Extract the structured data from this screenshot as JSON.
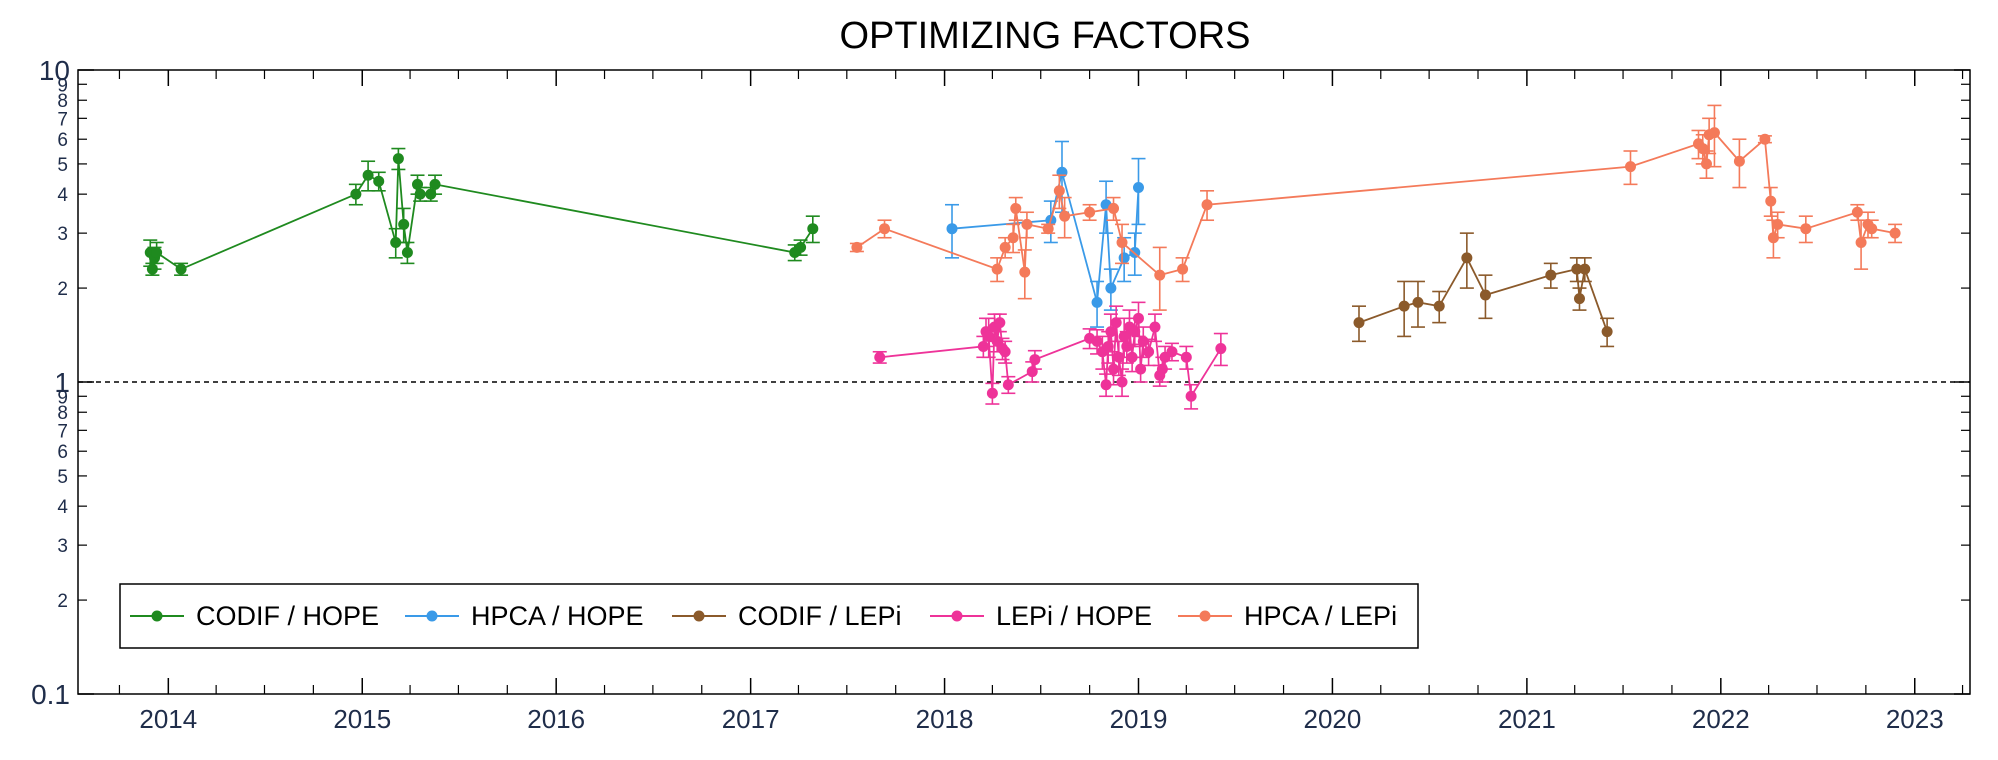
{
  "chart_data": {
    "type": "scatter",
    "title": "OPTIMIZING FACTORS",
    "xlabel": "",
    "ylabel": "",
    "x_axis": {
      "type": "date",
      "range": [
        "2013-07-15",
        "2023-04-15"
      ],
      "tick_labels": [
        "2014",
        "2015",
        "2016",
        "2017",
        "2018",
        "2019",
        "2020",
        "2021",
        "2022",
        "2023"
      ],
      "tick_positions": [
        "2014-01-01",
        "2015-01-01",
        "2016-01-01",
        "2017-01-01",
        "2018-01-01",
        "2019-01-01",
        "2020-01-01",
        "2021-01-01",
        "2022-01-01",
        "2023-01-01"
      ]
    },
    "y_axis": {
      "scale": "log",
      "range": [
        0.1,
        10
      ],
      "major_tick_labels": [
        "0.1",
        "1",
        "10"
      ],
      "minor_tick_labels": [
        "2",
        "3",
        "4",
        "5",
        "6",
        "7",
        "8",
        "9",
        "2",
        "3",
        "4",
        "5",
        "6",
        "7",
        "8",
        "9"
      ]
    },
    "reference_line": {
      "y": 1,
      "style": "dashed"
    },
    "grid": false,
    "legend": {
      "placement": "bottom-left",
      "horizontal": true
    },
    "series": [
      {
        "name": "CODIF / HOPE",
        "color": "#1f8a1f",
        "points": [
          {
            "x": "2013-11-28",
            "y": 2.6,
            "err": 0.25
          },
          {
            "x": "2013-12-02",
            "y": 2.3,
            "err": 0.1
          },
          {
            "x": "2013-12-06",
            "y": 2.5,
            "err": 0.2
          },
          {
            "x": "2013-12-10",
            "y": 2.6,
            "err": 0.2
          },
          {
            "x": "2014-01-25",
            "y": 2.3,
            "err": 0.1
          },
          {
            "x": "2014-12-20",
            "y": 4.0,
            "err": 0.3
          },
          {
            "x": "2015-01-12",
            "y": 4.6,
            "err": 0.5
          },
          {
            "x": "2015-02-01",
            "y": 4.4,
            "err": 0.3
          },
          {
            "x": "2015-03-05",
            "y": 2.8,
            "err": 0.3
          },
          {
            "x": "2015-03-10",
            "y": 5.2,
            "err": 0.4
          },
          {
            "x": "2015-03-20",
            "y": 3.2,
            "err": 0.4
          },
          {
            "x": "2015-03-27",
            "y": 2.6,
            "err": 0.2
          },
          {
            "x": "2015-04-15",
            "y": 4.3,
            "err": 0.3
          },
          {
            "x": "2015-04-20",
            "y": 4.0,
            "err": 0.2
          },
          {
            "x": "2015-05-10",
            "y": 4.0,
            "err": 0.2
          },
          {
            "x": "2015-05-18",
            "y": 4.3,
            "err": 0.3
          },
          {
            "x": "2017-03-25",
            "y": 2.6,
            "err": 0.15
          },
          {
            "x": "2017-04-05",
            "y": 2.7,
            "err": 0.15
          },
          {
            "x": "2017-04-28",
            "y": 3.1,
            "err": 0.3
          }
        ]
      },
      {
        "name": "HPCA / HOPE",
        "color": "#3a9ae8",
        "points": [
          {
            "x": "2018-01-15",
            "y": 3.1,
            "err": 0.6
          },
          {
            "x": "2018-07-20",
            "y": 3.3,
            "err": 0.5
          },
          {
            "x": "2018-08-10",
            "y": 4.7,
            "err": 1.2
          },
          {
            "x": "2018-10-15",
            "y": 1.8,
            "err": 0.3
          },
          {
            "x": "2018-11-01",
            "y": 3.7,
            "err": 0.7
          },
          {
            "x": "2018-11-10",
            "y": 2.0,
            "err": 0.3
          },
          {
            "x": "2018-12-05",
            "y": 2.5,
            "err": 0.4
          },
          {
            "x": "2018-12-25",
            "y": 2.6,
            "err": 0.4
          },
          {
            "x": "2019-01-01",
            "y": 4.2,
            "err": 1.0
          }
        ]
      },
      {
        "name": "CODIF / LEPi",
        "color": "#8b5a2b",
        "points": [
          {
            "x": "2020-02-20",
            "y": 1.55,
            "err": 0.2
          },
          {
            "x": "2020-05-15",
            "y": 1.75,
            "err": 0.35
          },
          {
            "x": "2020-06-10",
            "y": 1.8,
            "err": 0.3
          },
          {
            "x": "2020-07-20",
            "y": 1.75,
            "err": 0.2
          },
          {
            "x": "2020-09-10",
            "y": 2.5,
            "err": 0.5
          },
          {
            "x": "2020-10-15",
            "y": 1.9,
            "err": 0.3
          },
          {
            "x": "2021-02-15",
            "y": 2.2,
            "err": 0.2
          },
          {
            "x": "2021-04-05",
            "y": 2.3,
            "err": 0.2
          },
          {
            "x": "2021-04-10",
            "y": 1.85,
            "err": 0.15
          },
          {
            "x": "2021-04-20",
            "y": 2.3,
            "err": 0.2
          },
          {
            "x": "2021-06-01",
            "y": 1.45,
            "err": 0.15
          }
        ]
      },
      {
        "name": "LEPi / HOPE",
        "color": "#ee3399",
        "points": [
          {
            "x": "2017-09-01",
            "y": 1.2,
            "err": 0.05
          },
          {
            "x": "2018-03-15",
            "y": 1.3,
            "err": 0.1
          },
          {
            "x": "2018-03-20",
            "y": 1.45,
            "err": 0.15
          },
          {
            "x": "2018-03-25",
            "y": 1.4,
            "err": 0.2
          },
          {
            "x": "2018-04-01",
            "y": 0.92,
            "err": 0.07
          },
          {
            "x": "2018-04-05",
            "y": 1.5,
            "err": 0.15
          },
          {
            "x": "2018-04-10",
            "y": 1.35,
            "err": 0.1
          },
          {
            "x": "2018-04-15",
            "y": 1.55,
            "err": 0.1
          },
          {
            "x": "2018-04-20",
            "y": 1.28,
            "err": 0.1
          },
          {
            "x": "2018-04-25",
            "y": 1.25,
            "err": 0.1
          },
          {
            "x": "2018-05-01",
            "y": 0.98,
            "err": 0.06
          },
          {
            "x": "2018-06-15",
            "y": 1.08,
            "err": 0.08
          },
          {
            "x": "2018-06-20",
            "y": 1.18,
            "err": 0.08
          },
          {
            "x": "2018-10-01",
            "y": 1.38,
            "err": 0.1
          },
          {
            "x": "2018-10-15",
            "y": 1.35,
            "err": 0.12
          },
          {
            "x": "2018-10-25",
            "y": 1.25,
            "err": 0.15
          },
          {
            "x": "2018-11-01",
            "y": 0.98,
            "err": 0.08
          },
          {
            "x": "2018-11-05",
            "y": 1.3,
            "err": 0.15
          },
          {
            "x": "2018-11-10",
            "y": 1.45,
            "err": 0.2
          },
          {
            "x": "2018-11-15",
            "y": 1.1,
            "err": 0.12
          },
          {
            "x": "2018-11-20",
            "y": 1.55,
            "err": 0.2
          },
          {
            "x": "2018-11-25",
            "y": 1.2,
            "err": 0.15
          },
          {
            "x": "2018-12-01",
            "y": 1.0,
            "err": 0.1
          },
          {
            "x": "2018-12-05",
            "y": 1.4,
            "err": 0.2
          },
          {
            "x": "2018-12-10",
            "y": 1.3,
            "err": 0.15
          },
          {
            "x": "2018-12-15",
            "y": 1.5,
            "err": 0.2
          },
          {
            "x": "2018-12-20",
            "y": 1.2,
            "err": 0.12
          },
          {
            "x": "2018-12-25",
            "y": 1.45,
            "err": 0.15
          },
          {
            "x": "2019-01-01",
            "y": 1.6,
            "err": 0.2
          },
          {
            "x": "2019-01-05",
            "y": 1.1,
            "err": 0.1
          },
          {
            "x": "2019-01-10",
            "y": 1.35,
            "err": 0.15
          },
          {
            "x": "2019-01-20",
            "y": 1.25,
            "err": 0.12
          },
          {
            "x": "2019-02-01",
            "y": 1.5,
            "err": 0.15
          },
          {
            "x": "2019-02-10",
            "y": 1.05,
            "err": 0.08
          },
          {
            "x": "2019-02-15",
            "y": 1.1,
            "err": 0.1
          },
          {
            "x": "2019-02-20",
            "y": 1.2,
            "err": 0.1
          },
          {
            "x": "2019-03-05",
            "y": 1.25,
            "err": 0.08
          },
          {
            "x": "2019-04-01",
            "y": 1.2,
            "err": 0.1
          },
          {
            "x": "2019-04-10",
            "y": 0.9,
            "err": 0.08
          },
          {
            "x": "2019-06-05",
            "y": 1.28,
            "err": 0.15
          }
        ]
      },
      {
        "name": "HPCA / LEPi",
        "color": "#f47a5a",
        "points": [
          {
            "x": "2017-07-20",
            "y": 2.7,
            "err": 0.08
          },
          {
            "x": "2017-09-10",
            "y": 3.1,
            "err": 0.2
          },
          {
            "x": "2018-04-10",
            "y": 2.3,
            "err": 0.2
          },
          {
            "x": "2018-04-25",
            "y": 2.7,
            "err": 0.2
          },
          {
            "x": "2018-05-10",
            "y": 2.9,
            "err": 0.3
          },
          {
            "x": "2018-05-15",
            "y": 3.6,
            "err": 0.3
          },
          {
            "x": "2018-06-01",
            "y": 2.25,
            "err": 0.4
          },
          {
            "x": "2018-06-05",
            "y": 3.2,
            "err": 0.3
          },
          {
            "x": "2018-07-15",
            "y": 3.1,
            "err": 0.1
          },
          {
            "x": "2018-08-05",
            "y": 4.1,
            "err": 0.5
          },
          {
            "x": "2018-08-15",
            "y": 3.4,
            "err": 0.5
          },
          {
            "x": "2018-10-01",
            "y": 3.5,
            "err": 0.2
          },
          {
            "x": "2018-11-15",
            "y": 3.6,
            "err": 0.3
          },
          {
            "x": "2018-12-01",
            "y": 2.8,
            "err": 0.4
          },
          {
            "x": "2019-02-10",
            "y": 2.2,
            "err": 0.5
          },
          {
            "x": "2019-03-25",
            "y": 2.3,
            "err": 0.2
          },
          {
            "x": "2019-05-10",
            "y": 3.7,
            "err": 0.4
          },
          {
            "x": "2021-07-15",
            "y": 4.9,
            "err": 0.6
          },
          {
            "x": "2021-11-20",
            "y": 5.8,
            "err": 0.6
          },
          {
            "x": "2021-11-28",
            "y": 5.6,
            "err": 0.6
          },
          {
            "x": "2021-12-05",
            "y": 5.0,
            "err": 0.5
          },
          {
            "x": "2021-12-10",
            "y": 6.2,
            "err": 0.8
          },
          {
            "x": "2021-12-20",
            "y": 6.3,
            "err": 1.4
          },
          {
            "x": "2022-02-05",
            "y": 5.1,
            "err": 0.9
          },
          {
            "x": "2022-03-25",
            "y": 6.0,
            "err": 0.15
          },
          {
            "x": "2022-04-05",
            "y": 3.8,
            "err": 0.4
          },
          {
            "x": "2022-04-10",
            "y": 2.9,
            "err": 0.4
          },
          {
            "x": "2022-04-18",
            "y": 3.2,
            "err": 0.3
          },
          {
            "x": "2022-06-10",
            "y": 3.1,
            "err": 0.3
          },
          {
            "x": "2022-09-15",
            "y": 3.5,
            "err": 0.2
          },
          {
            "x": "2022-09-22",
            "y": 2.8,
            "err": 0.5
          },
          {
            "x": "2022-10-05",
            "y": 3.2,
            "err": 0.3
          },
          {
            "x": "2022-10-12",
            "y": 3.1,
            "err": 0.2
          },
          {
            "x": "2022-11-25",
            "y": 3.0,
            "err": 0.2
          }
        ]
      }
    ]
  }
}
